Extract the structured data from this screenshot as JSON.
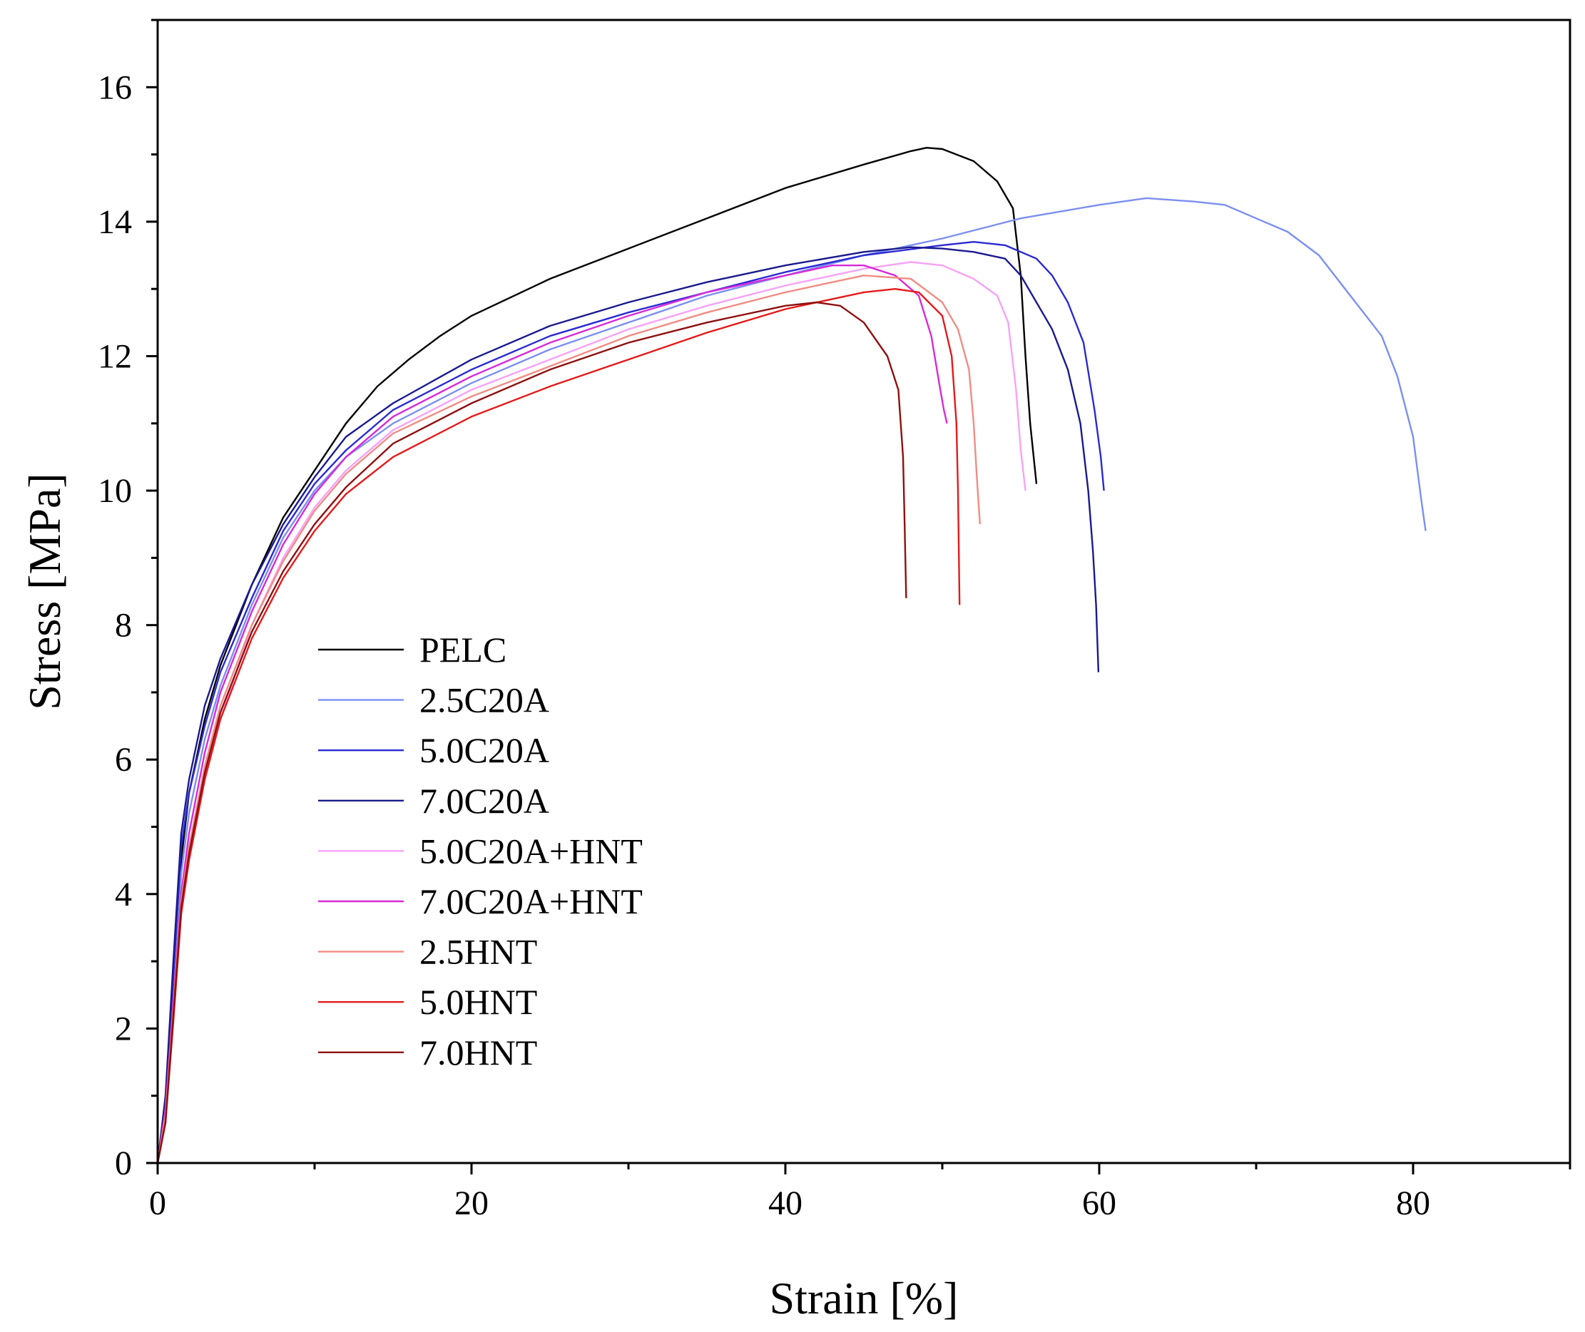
{
  "chart_data": {
    "type": "line",
    "title": "",
    "xlabel": "Strain [%]",
    "ylabel": "Stress [MPa]",
    "xlim": [
      0,
      90
    ],
    "ylim": [
      0,
      17
    ],
    "grid": false,
    "legend_position": "lower-left",
    "x_ticks": [
      {
        "value": 0,
        "label": "0"
      },
      {
        "value": 20,
        "label": "20"
      },
      {
        "value": 40,
        "label": "40"
      },
      {
        "value": 60,
        "label": "60"
      },
      {
        "value": 80,
        "label": "80"
      }
    ],
    "x_minor_ticks": [
      10,
      30,
      50,
      70,
      90
    ],
    "y_ticks": [
      {
        "value": 0,
        "label": "0"
      },
      {
        "value": 2,
        "label": "2"
      },
      {
        "value": 4,
        "label": "4"
      },
      {
        "value": 6,
        "label": "6"
      },
      {
        "value": 8,
        "label": "8"
      },
      {
        "value": 10,
        "label": "10"
      },
      {
        "value": 12,
        "label": "12"
      },
      {
        "value": 14,
        "label": "14"
      },
      {
        "value": 16,
        "label": "16"
      }
    ],
    "y_minor_ticks": [
      1,
      3,
      5,
      7,
      9,
      11,
      13,
      15,
      17
    ],
    "series": [
      {
        "name": "PELC",
        "color": "#000000",
        "points": [
          [
            0,
            0
          ],
          [
            0.5,
            0.8
          ],
          [
            1,
            2.5
          ],
          [
            1.5,
            4.5
          ],
          [
            2,
            5.5
          ],
          [
            3,
            6.6
          ],
          [
            4,
            7.4
          ],
          [
            6,
            8.6
          ],
          [
            8,
            9.6
          ],
          [
            10,
            10.3
          ],
          [
            12,
            11
          ],
          [
            14,
            11.55
          ],
          [
            16,
            11.95
          ],
          [
            18,
            12.3
          ],
          [
            20,
            12.6
          ],
          [
            25,
            13.15
          ],
          [
            30,
            13.6
          ],
          [
            35,
            14.05
          ],
          [
            40,
            14.5
          ],
          [
            45,
            14.85
          ],
          [
            48,
            15.05
          ],
          [
            49,
            15.1
          ],
          [
            50,
            15.08
          ],
          [
            52,
            14.9
          ],
          [
            53.5,
            14.6
          ],
          [
            54.5,
            14.2
          ],
          [
            55,
            13.2
          ],
          [
            55.3,
            12
          ],
          [
            55.6,
            11
          ],
          [
            56,
            10.1
          ]
        ]
      },
      {
        "name": "2.5C20A",
        "color": "#7b8ff0",
        "points": [
          [
            0,
            0
          ],
          [
            0.5,
            0.8
          ],
          [
            1,
            2.4
          ],
          [
            1.5,
            4.3
          ],
          [
            2,
            5.2
          ],
          [
            3,
            6.3
          ],
          [
            4,
            7.1
          ],
          [
            6,
            8.3
          ],
          [
            8,
            9.3
          ],
          [
            10,
            10
          ],
          [
            12,
            10.5
          ],
          [
            15,
            11
          ],
          [
            20,
            11.6
          ],
          [
            25,
            12.1
          ],
          [
            30,
            12.5
          ],
          [
            35,
            12.9
          ],
          [
            40,
            13.2
          ],
          [
            45,
            13.5
          ],
          [
            50,
            13.75
          ],
          [
            55,
            14.05
          ],
          [
            60,
            14.25
          ],
          [
            63,
            14.35
          ],
          [
            66,
            14.3
          ],
          [
            68,
            14.25
          ],
          [
            70,
            14.05
          ],
          [
            72,
            13.85
          ],
          [
            74,
            13.5
          ],
          [
            76,
            12.9
          ],
          [
            78,
            12.3
          ],
          [
            79,
            11.7
          ],
          [
            80,
            10.8
          ],
          [
            80.5,
            9.9
          ],
          [
            80.8,
            9.4
          ]
        ]
      },
      {
        "name": "5.0C20A",
        "color": "#2a2ad2",
        "points": [
          [
            0,
            0
          ],
          [
            0.5,
            0.9
          ],
          [
            1,
            2.8
          ],
          [
            1.5,
            4.7
          ],
          [
            2,
            5.5
          ],
          [
            3,
            6.5
          ],
          [
            4,
            7.3
          ],
          [
            6,
            8.4
          ],
          [
            8,
            9.4
          ],
          [
            10,
            10.1
          ],
          [
            12,
            10.6
          ],
          [
            15,
            11.2
          ],
          [
            20,
            11.8
          ],
          [
            25,
            12.3
          ],
          [
            30,
            12.65
          ],
          [
            35,
            12.95
          ],
          [
            40,
            13.25
          ],
          [
            45,
            13.5
          ],
          [
            50,
            13.65
          ],
          [
            52,
            13.7
          ],
          [
            54,
            13.65
          ],
          [
            56,
            13.45
          ],
          [
            57,
            13.2
          ],
          [
            58,
            12.8
          ],
          [
            59,
            12.2
          ],
          [
            59.7,
            11.2
          ],
          [
            60.1,
            10.5
          ],
          [
            60.3,
            10
          ]
        ]
      },
      {
        "name": "7.0C20A",
        "color": "#1a1a8e",
        "points": [
          [
            0,
            0
          ],
          [
            0.5,
            1
          ],
          [
            1,
            3
          ],
          [
            1.5,
            4.9
          ],
          [
            2,
            5.7
          ],
          [
            3,
            6.8
          ],
          [
            4,
            7.5
          ],
          [
            6,
            8.6
          ],
          [
            8,
            9.5
          ],
          [
            10,
            10.2
          ],
          [
            12,
            10.8
          ],
          [
            15,
            11.3
          ],
          [
            20,
            11.95
          ],
          [
            25,
            12.45
          ],
          [
            30,
            12.8
          ],
          [
            35,
            13.1
          ],
          [
            40,
            13.35
          ],
          [
            45,
            13.55
          ],
          [
            48,
            13.62
          ],
          [
            50,
            13.6
          ],
          [
            52,
            13.55
          ],
          [
            54,
            13.45
          ],
          [
            55,
            13.2
          ],
          [
            56,
            12.8
          ],
          [
            57,
            12.4
          ],
          [
            58,
            11.8
          ],
          [
            58.8,
            11
          ],
          [
            59.3,
            10
          ],
          [
            59.6,
            9.1
          ],
          [
            59.8,
            8.3
          ],
          [
            59.95,
            7.3
          ]
        ]
      },
      {
        "name": "5.0C20A+HNT",
        "color": "#f7a2f7",
        "points": [
          [
            0,
            0
          ],
          [
            0.5,
            0.7
          ],
          [
            1,
            2.2
          ],
          [
            1.5,
            3.7
          ],
          [
            2,
            4.5
          ],
          [
            3,
            5.7
          ],
          [
            4,
            6.6
          ],
          [
            6,
            8
          ],
          [
            8,
            9
          ],
          [
            10,
            9.75
          ],
          [
            12,
            10.3
          ],
          [
            15,
            10.9
          ],
          [
            20,
            11.5
          ],
          [
            25,
            11.95
          ],
          [
            30,
            12.4
          ],
          [
            35,
            12.75
          ],
          [
            40,
            13.05
          ],
          [
            45,
            13.3
          ],
          [
            48,
            13.4
          ],
          [
            50,
            13.35
          ],
          [
            52,
            13.15
          ],
          [
            53.5,
            12.9
          ],
          [
            54.2,
            12.5
          ],
          [
            54.7,
            11.5
          ],
          [
            55,
            10.6
          ],
          [
            55.3,
            10
          ]
        ]
      },
      {
        "name": "7.0C20A+HNT",
        "color": "#d82ad8",
        "points": [
          [
            0,
            0
          ],
          [
            0.5,
            0.8
          ],
          [
            1,
            2.4
          ],
          [
            1.5,
            4
          ],
          [
            2,
            4.9
          ],
          [
            3,
            6.1
          ],
          [
            4,
            7
          ],
          [
            6,
            8.2
          ],
          [
            8,
            9.2
          ],
          [
            10,
            9.95
          ],
          [
            12,
            10.5
          ],
          [
            15,
            11.1
          ],
          [
            20,
            11.7
          ],
          [
            25,
            12.2
          ],
          [
            30,
            12.6
          ],
          [
            35,
            12.95
          ],
          [
            40,
            13.2
          ],
          [
            43,
            13.35
          ],
          [
            45,
            13.35
          ],
          [
            47,
            13.2
          ],
          [
            48.5,
            12.9
          ],
          [
            49.3,
            12.3
          ],
          [
            49.8,
            11.6
          ],
          [
            50.1,
            11.2
          ],
          [
            50.3,
            11
          ]
        ]
      },
      {
        "name": "2.5HNT",
        "color": "#f08c84",
        "points": [
          [
            0,
            0
          ],
          [
            0.5,
            0.7
          ],
          [
            1,
            2.3
          ],
          [
            1.5,
            3.9
          ],
          [
            2,
            4.7
          ],
          [
            3,
            5.9
          ],
          [
            4,
            6.8
          ],
          [
            6,
            8
          ],
          [
            8,
            8.95
          ],
          [
            10,
            9.7
          ],
          [
            12,
            10.25
          ],
          [
            15,
            10.85
          ],
          [
            20,
            11.4
          ],
          [
            25,
            11.85
          ],
          [
            30,
            12.3
          ],
          [
            35,
            12.65
          ],
          [
            40,
            12.95
          ],
          [
            45,
            13.2
          ],
          [
            48,
            13.15
          ],
          [
            50,
            12.8
          ],
          [
            51,
            12.4
          ],
          [
            51.7,
            11.8
          ],
          [
            52,
            11
          ],
          [
            52.2,
            10.2
          ],
          [
            52.4,
            9.5
          ]
        ]
      },
      {
        "name": "5.0HNT",
        "color": "#e41a1a",
        "points": [
          [
            0,
            0
          ],
          [
            0.5,
            0.6
          ],
          [
            1,
            2.1
          ],
          [
            1.5,
            3.7
          ],
          [
            2,
            4.5
          ],
          [
            3,
            5.7
          ],
          [
            4,
            6.6
          ],
          [
            6,
            7.8
          ],
          [
            8,
            8.7
          ],
          [
            10,
            9.4
          ],
          [
            12,
            9.95
          ],
          [
            15,
            10.5
          ],
          [
            20,
            11.1
          ],
          [
            25,
            11.55
          ],
          [
            30,
            11.95
          ],
          [
            35,
            12.35
          ],
          [
            40,
            12.7
          ],
          [
            45,
            12.95
          ],
          [
            47,
            13
          ],
          [
            48.5,
            12.95
          ],
          [
            50,
            12.6
          ],
          [
            50.6,
            12
          ],
          [
            50.9,
            11
          ],
          [
            51,
            10
          ],
          [
            51.1,
            8.3
          ]
        ]
      },
      {
        "name": "7.0HNT",
        "color": "#8e1010",
        "points": [
          [
            0,
            0
          ],
          [
            0.5,
            0.6
          ],
          [
            1,
            2.2
          ],
          [
            1.5,
            3.8
          ],
          [
            2,
            4.6
          ],
          [
            3,
            5.8
          ],
          [
            4,
            6.7
          ],
          [
            6,
            7.9
          ],
          [
            8,
            8.8
          ],
          [
            10,
            9.5
          ],
          [
            12,
            10.05
          ],
          [
            15,
            10.7
          ],
          [
            20,
            11.3
          ],
          [
            25,
            11.8
          ],
          [
            30,
            12.2
          ],
          [
            35,
            12.5
          ],
          [
            40,
            12.75
          ],
          [
            42,
            12.8
          ],
          [
            43.5,
            12.75
          ],
          [
            45,
            12.5
          ],
          [
            46.5,
            12
          ],
          [
            47.2,
            11.5
          ],
          [
            47.5,
            10.5
          ],
          [
            47.6,
            9.5
          ],
          [
            47.7,
            8.4
          ]
        ]
      }
    ]
  }
}
